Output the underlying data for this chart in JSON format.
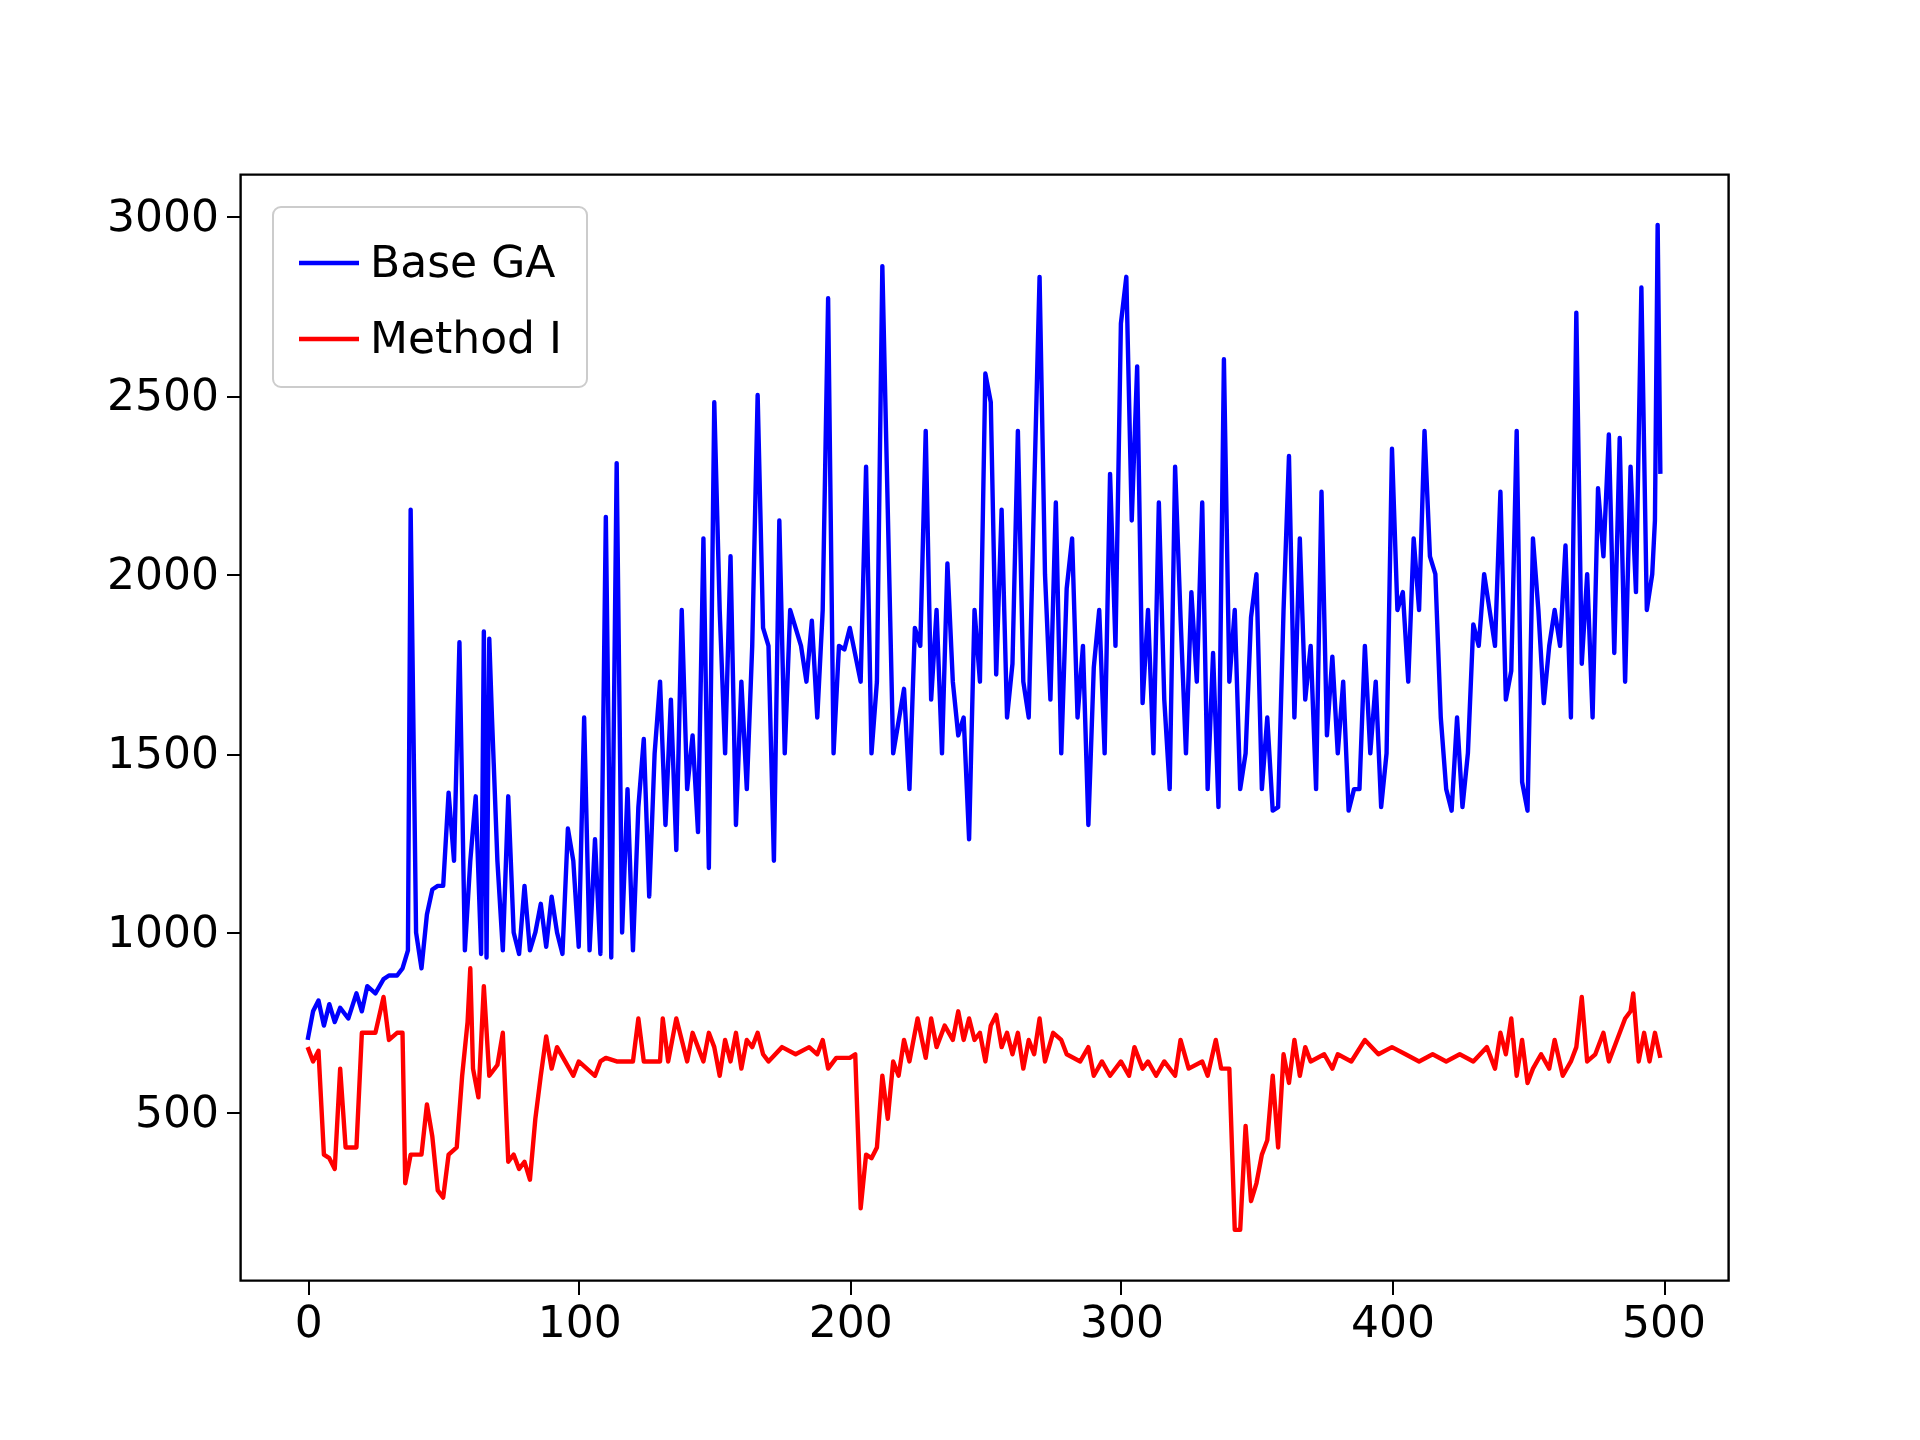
{
  "chart_data": {
    "type": "line",
    "xlim": [
      -24.95,
      523.95
    ],
    "ylim": [
      30,
      3117
    ],
    "xticks": [
      0,
      100,
      200,
      300,
      400,
      500
    ],
    "yticks": [
      500,
      1000,
      1500,
      2000,
      2500,
      3000
    ],
    "grid": false,
    "legend": "top left",
    "series": [
      {
        "name": "Base GA",
        "color": "#0000ff",
        "x": [
          0,
          2,
          4,
          6,
          8,
          10,
          12,
          15,
          18,
          20,
          22,
          25,
          28,
          30,
          33,
          35,
          37,
          38,
          40,
          42,
          44,
          46,
          48,
          50,
          52,
          54,
          56,
          58,
          60,
          62,
          64,
          65,
          66,
          67,
          68,
          70,
          72,
          74,
          76,
          78,
          80,
          82,
          84,
          86,
          88,
          90,
          92,
          94,
          96,
          98,
          100,
          102,
          104,
          106,
          108,
          110,
          112,
          114,
          116,
          118,
          120,
          122,
          124,
          126,
          128,
          130,
          132,
          134,
          136,
          138,
          140,
          142,
          144,
          146,
          148,
          150,
          152,
          154,
          156,
          158,
          160,
          162,
          164,
          166,
          168,
          170,
          172,
          174,
          176,
          178,
          180,
          182,
          184,
          186,
          188,
          190,
          192,
          194,
          196,
          198,
          200,
          204,
          206,
          208,
          210,
          212,
          216,
          220,
          222,
          224,
          226,
          228,
          230,
          232,
          234,
          236,
          238,
          240,
          242,
          244,
          246,
          248,
          250,
          252,
          254,
          256,
          258,
          260,
          262,
          264,
          266,
          268,
          270,
          272,
          274,
          276,
          278,
          280,
          282,
          284,
          286,
          288,
          290,
          292,
          294,
          296,
          298,
          300,
          302,
          304,
          306,
          308,
          310,
          312,
          314,
          316,
          318,
          320,
          322,
          324,
          326,
          328,
          330,
          332,
          334,
          336,
          338,
          340,
          342,
          344,
          346,
          348,
          350,
          352,
          354,
          356,
          358,
          360,
          362,
          364,
          366,
          368,
          370,
          372,
          374,
          376,
          378,
          380,
          382,
          384,
          386,
          388,
          390,
          392,
          394,
          396,
          398,
          400,
          402,
          404,
          406,
          408,
          410,
          412,
          414,
          416,
          418,
          420,
          422,
          424,
          426,
          428,
          430,
          432,
          434,
          436,
          438,
          440,
          442,
          444,
          446,
          448,
          450,
          452,
          454,
          456,
          458,
          460,
          462,
          464,
          466,
          468,
          470,
          472,
          474,
          476,
          478,
          480,
          482,
          484,
          486,
          488,
          490,
          492,
          494,
          496,
          497,
          498,
          499
        ],
        "values": [
          700,
          780,
          810,
          740,
          800,
          750,
          790,
          760,
          830,
          780,
          850,
          830,
          870,
          880,
          880,
          900,
          950,
          2180,
          1000,
          900,
          1050,
          1120,
          1130,
          1130,
          1390,
          1200,
          1810,
          950,
          1200,
          1380,
          940,
          1840,
          930,
          1820,
          1600,
          1200,
          950,
          1380,
          1000,
          940,
          1130,
          950,
          1000,
          1080,
          960,
          1100,
          1000,
          940,
          1290,
          1200,
          960,
          1600,
          950,
          1260,
          940,
          2160,
          930,
          2310,
          1000,
          1400,
          950,
          1350,
          1540,
          1100,
          1500,
          1700,
          1300,
          1650,
          1230,
          1900,
          1400,
          1550,
          1280,
          2100,
          1180,
          2480,
          1900,
          1500,
          2050,
          1300,
          1700,
          1400,
          1800,
          2500,
          1850,
          1800,
          1200,
          2150,
          1500,
          1900,
          1850,
          1800,
          1700,
          1870,
          1600,
          1900,
          2770,
          1500,
          1800,
          1790,
          1850,
          1700,
          2300,
          1500,
          1700,
          2860,
          1500,
          1680,
          1400,
          1850,
          1800,
          2400,
          1650,
          1900,
          1500,
          2030,
          1700,
          1550,
          1600,
          1260,
          1900,
          1700,
          2560,
          2480,
          1720,
          2180,
          1600,
          1750,
          2400,
          1700,
          1600,
          2230,
          2830,
          2000,
          1650,
          2200,
          1500,
          1960,
          2100,
          1600,
          1800,
          1300,
          1740,
          1900,
          1500,
          2280,
          1800,
          2700,
          2830,
          2150,
          2580,
          1640,
          1900,
          1500,
          2200,
          1650,
          1400,
          2300,
          1880,
          1500,
          1950,
          1700,
          2200,
          1400,
          1780,
          1350,
          2600,
          1700,
          1900,
          1400,
          1500,
          1880,
          2000,
          1400,
          1600,
          1340,
          1350,
          1900,
          2330,
          1600,
          2100,
          1650,
          1800,
          1400,
          2230,
          1550,
          1770,
          1500,
          1700,
          1340,
          1400,
          1400,
          1800,
          1500,
          1700,
          1350,
          1500,
          2350,
          1900,
          1950,
          1700,
          2100,
          1900,
          2400,
          2050,
          2000,
          1600,
          1400,
          1340,
          1600,
          1350,
          1500,
          1860,
          1800,
          2000,
          1900,
          1800,
          2230,
          1650,
          1730,
          2400,
          1420,
          1340,
          2100,
          1900,
          1640,
          1800,
          1900,
          1800,
          2080,
          1600,
          2730,
          1750,
          2000,
          1600,
          2240,
          2050,
          2390,
          1780,
          2380,
          1700,
          2300,
          1950,
          2800,
          1900,
          2000,
          2150,
          2975,
          2280
        ]
      },
      {
        "name": "Method I",
        "color": "#ff0000",
        "x": [
          0,
          2,
          4,
          6,
          8,
          10,
          12,
          14,
          16,
          18,
          20,
          25,
          28,
          30,
          33,
          35,
          36,
          38,
          42,
          44,
          46,
          48,
          50,
          52,
          55,
          57,
          59,
          60,
          61,
          63,
          65,
          67,
          70,
          72,
          74,
          76,
          78,
          80,
          82,
          84,
          86,
          88,
          90,
          92,
          95,
          98,
          100,
          103,
          106,
          108,
          110,
          114,
          120,
          122,
          124,
          130,
          131,
          133,
          136,
          138,
          140,
          142,
          144,
          146,
          148,
          150,
          152,
          154,
          156,
          158,
          160,
          162,
          164,
          166,
          168,
          170,
          175,
          180,
          185,
          188,
          190,
          192,
          195,
          200,
          202,
          204,
          206,
          208,
          210,
          212,
          214,
          216,
          218,
          220,
          222,
          225,
          228,
          230,
          232,
          235,
          238,
          240,
          242,
          244,
          246,
          248,
          250,
          252,
          254,
          256,
          258,
          260,
          262,
          264,
          266,
          268,
          270,
          272,
          275,
          278,
          280,
          285,
          288,
          290,
          293,
          296,
          300,
          303,
          305,
          308,
          310,
          313,
          316,
          320,
          322,
          325,
          330,
          332,
          335,
          337,
          340,
          342,
          344,
          346,
          348,
          350,
          352,
          354,
          356,
          358,
          360,
          362,
          364,
          366,
          368,
          370,
          375,
          378,
          380,
          385,
          390,
          395,
          400,
          405,
          410,
          415,
          420,
          425,
          430,
          435,
          438,
          440,
          442,
          444,
          446,
          448,
          450,
          452,
          455,
          458,
          460,
          463,
          466,
          468,
          470,
          472,
          475,
          478,
          480,
          483,
          486,
          488,
          489,
          491,
          493,
          495,
          497,
          499
        ],
        "values": [
          680,
          640,
          670,
          380,
          370,
          340,
          620,
          400,
          400,
          400,
          720,
          720,
          820,
          700,
          720,
          720,
          300,
          380,
          380,
          520,
          430,
          280,
          260,
          380,
          400,
          600,
          750,
          900,
          620,
          540,
          850,
          600,
          630,
          720,
          360,
          380,
          340,
          360,
          310,
          480,
          600,
          710,
          620,
          680,
          640,
          600,
          640,
          620,
          600,
          640,
          650,
          640,
          640,
          760,
          640,
          640,
          760,
          640,
          760,
          700,
          640,
          720,
          680,
          640,
          720,
          680,
          600,
          700,
          640,
          720,
          620,
          700,
          680,
          720,
          660,
          640,
          680,
          660,
          680,
          660,
          700,
          620,
          650,
          650,
          660,
          230,
          380,
          370,
          400,
          600,
          480,
          640,
          600,
          700,
          640,
          760,
          650,
          760,
          680,
          740,
          700,
          780,
          700,
          760,
          700,
          720,
          640,
          740,
          770,
          680,
          720,
          660,
          720,
          620,
          700,
          660,
          760,
          640,
          720,
          700,
          660,
          640,
          680,
          600,
          640,
          600,
          640,
          600,
          680,
          620,
          640,
          600,
          640,
          600,
          700,
          620,
          640,
          600,
          700,
          620,
          620,
          170,
          170,
          460,
          250,
          300,
          380,
          420,
          600,
          400,
          660,
          580,
          700,
          600,
          680,
          640,
          660,
          620,
          660,
          640,
          700,
          660,
          680,
          660,
          640,
          660,
          640,
          660,
          640,
          680,
          620,
          720,
          660,
          760,
          600,
          700,
          580,
          620,
          660,
          620,
          700,
          600,
          640,
          680,
          820,
          640,
          660,
          720,
          640,
          700,
          760,
          780,
          830,
          640,
          720,
          640,
          720,
          650
        ]
      }
    ]
  }
}
